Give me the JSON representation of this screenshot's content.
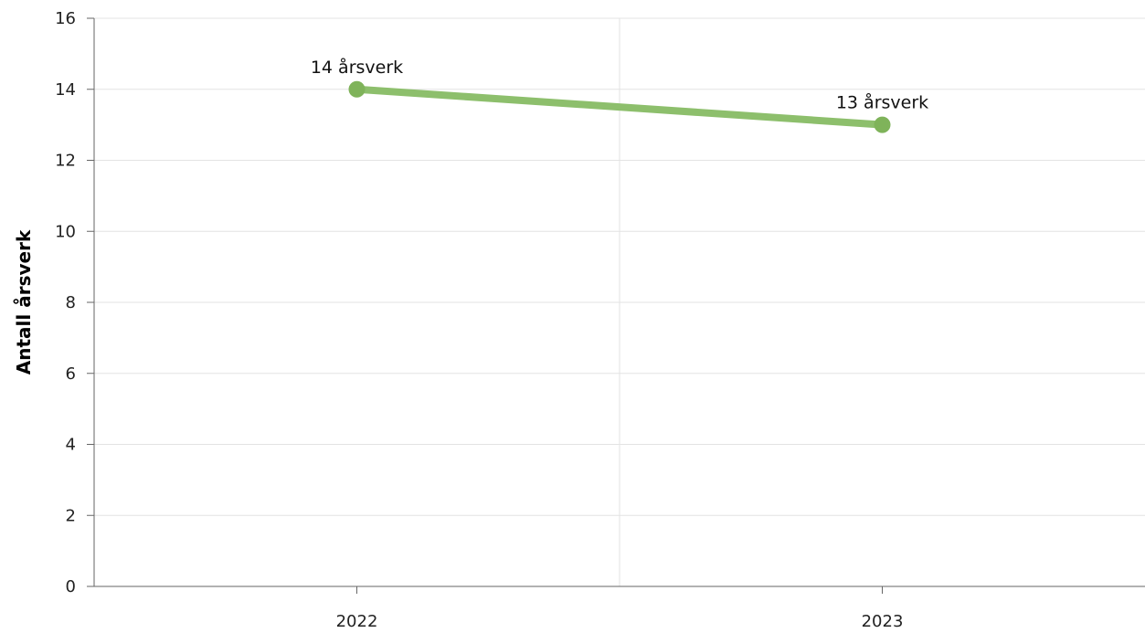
{
  "chart_data": {
    "type": "line",
    "title": "",
    "xlabel": "",
    "ylabel": "Antall årsverk",
    "categories": [
      "2022",
      "2023"
    ],
    "series": [
      {
        "values": [
          14,
          13
        ],
        "color": "#8dbf6c",
        "marker_color": "#7fb35a"
      }
    ],
    "data_labels": [
      "14 årsverk",
      "13 årsverk"
    ],
    "ylim": [
      0,
      16
    ],
    "yticks": [
      0,
      2,
      4,
      6,
      8,
      10,
      12,
      14,
      16
    ],
    "grid": true,
    "legend": "none"
  }
}
